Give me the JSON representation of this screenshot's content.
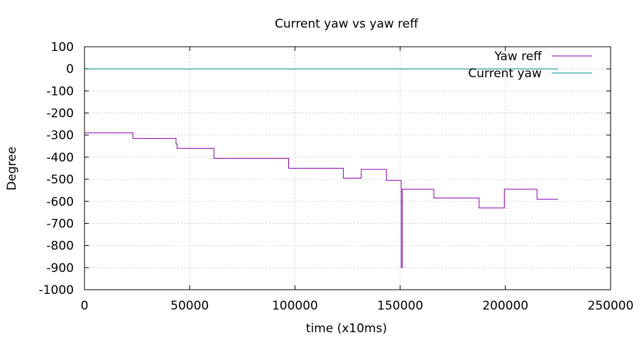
{
  "chart_data": {
    "type": "line",
    "title": "Current yaw vs yaw reff",
    "xlabel": "time (x10ms)",
    "ylabel": "Degree",
    "xlim": [
      0,
      250000
    ],
    "ylim": [
      -1000,
      100
    ],
    "xticks": [
      0,
      50000,
      100000,
      150000,
      200000,
      250000
    ],
    "yticks": [
      -1000,
      -900,
      -800,
      -700,
      -600,
      -500,
      -400,
      -300,
      -200,
      -100,
      0,
      100
    ],
    "grid": true,
    "legend_position": "top-right",
    "series": [
      {
        "name": "Yaw reff",
        "color": "#8b00b5",
        "style": "step",
        "x": [
          0,
          23000,
          23000,
          43500,
          43500,
          44000,
          44000,
          61500,
          61500,
          97000,
          97000,
          123000,
          123000,
          131500,
          131500,
          143500,
          143500,
          150500,
          150500,
          151000,
          151000,
          151500,
          151500,
          166000,
          166000,
          187500,
          187500,
          199500,
          199500,
          215000,
          215000,
          225000
        ],
        "y": [
          -290,
          -290,
          -315,
          -315,
          -340,
          -340,
          -360,
          -360,
          -405,
          -405,
          -450,
          -450,
          -495,
          -495,
          -455,
          -455,
          -505,
          -505,
          -900,
          -900,
          -545,
          -545,
          -545,
          -545,
          -585,
          -585,
          -630,
          -630,
          -545,
          -545,
          -590,
          -590
        ]
      },
      {
        "name": "Current yaw",
        "color": "#008b8b",
        "style": "line",
        "x": [
          0,
          225000
        ],
        "y": [
          0,
          0
        ]
      }
    ]
  }
}
